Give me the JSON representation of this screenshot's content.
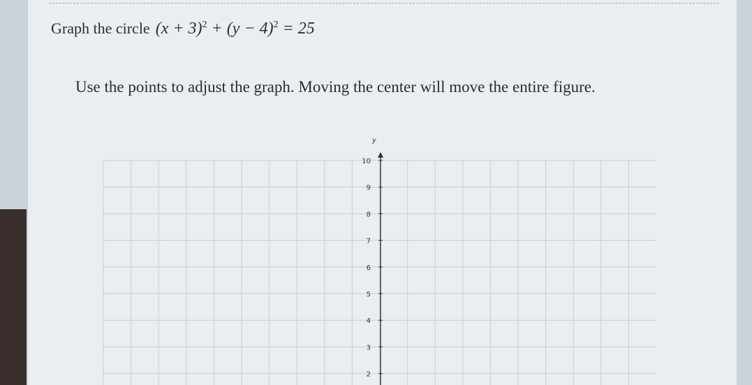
{
  "prompt": {
    "lead": "Graph the circle",
    "equation": [
      "(x + 3)",
      "2",
      "+ (y − 4)",
      "2",
      "= 25"
    ]
  },
  "instruction": "Use the points to adjust the graph. Moving the center will move the entire figure.",
  "graph": {
    "y_label": "y",
    "yticks": [
      10,
      9,
      8,
      7,
      6,
      5,
      4,
      3,
      2
    ]
  }
}
